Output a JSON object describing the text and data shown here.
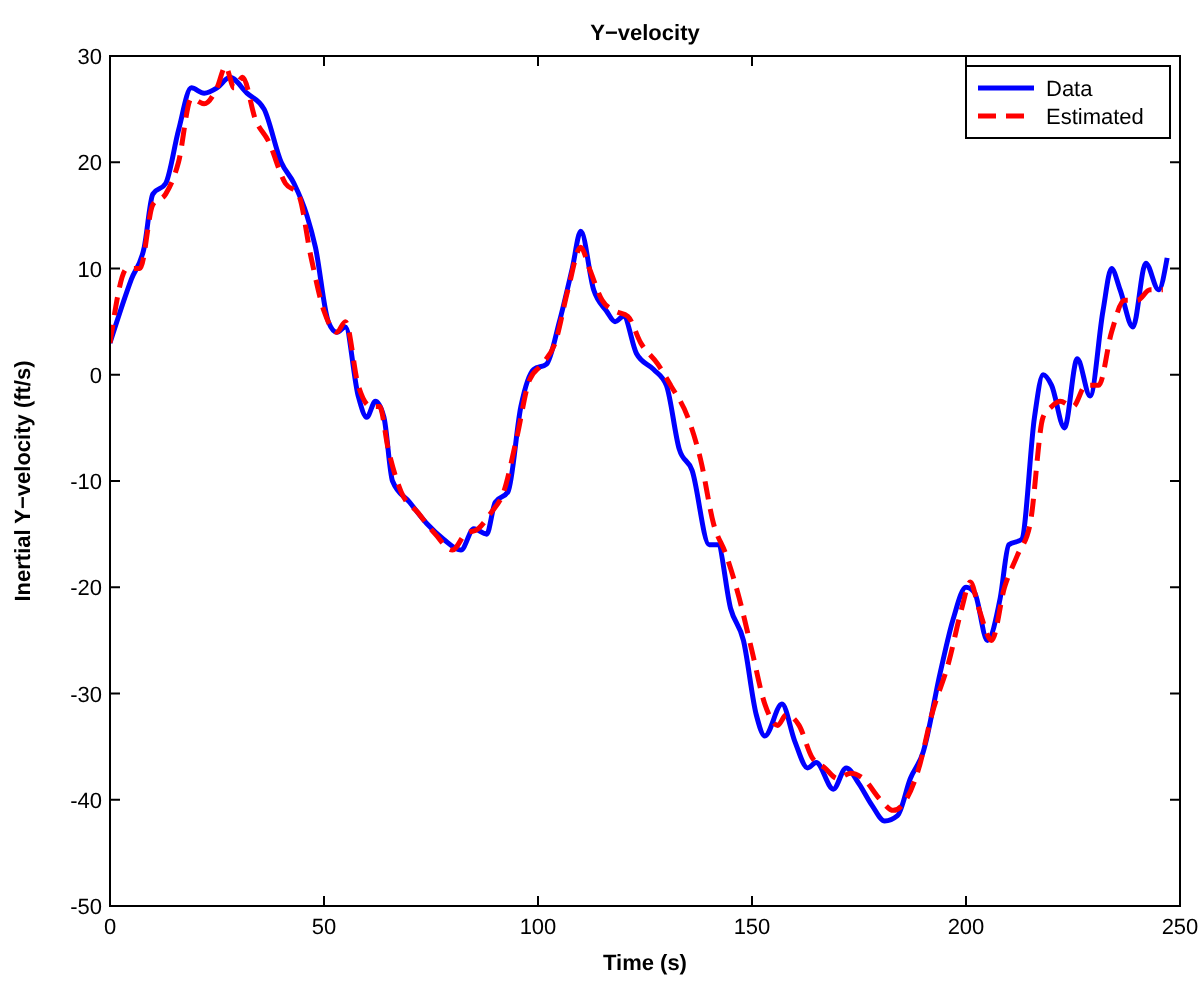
{
  "chart_data": {
    "type": "line",
    "title": "Y−velocity",
    "xlabel": "Time (s)",
    "ylabel": "Inertial Y−velocity (ft/s)",
    "xlim": [
      0,
      250
    ],
    "ylim": [
      -50,
      30
    ],
    "xticks": [
      0,
      50,
      100,
      150,
      200,
      250
    ],
    "yticks": [
      -50,
      -40,
      -30,
      -20,
      -10,
      0,
      10,
      20,
      30
    ],
    "legend": "top right",
    "grid": false,
    "series": [
      {
        "name": "Data",
        "color": "#0000ff",
        "line_style": "solid",
        "x": [
          0,
          5,
          8,
          10,
          13,
          16,
          19,
          22,
          25,
          28,
          32,
          36,
          40,
          43,
          46,
          48,
          51,
          53,
          55,
          58,
          60,
          62,
          64,
          66,
          70,
          74,
          78,
          82,
          85,
          88,
          90,
          93,
          96,
          99,
          102,
          105,
          108,
          110,
          113,
          116,
          118,
          120,
          123,
          127,
          130,
          133,
          136,
          140,
          142,
          145,
          148,
          151,
          153,
          157,
          160,
          163,
          165,
          169,
          172,
          175,
          178,
          181,
          184,
          187,
          190,
          194,
          197,
          200,
          202,
          205,
          208,
          210,
          213,
          216,
          218,
          220,
          223,
          226,
          229,
          232,
          234,
          236,
          239,
          242,
          245,
          247
        ],
        "values": [
          3,
          9,
          12,
          17,
          18,
          23,
          27,
          26.5,
          27,
          28,
          26.5,
          25,
          20,
          18,
          15,
          12,
          5,
          4,
          4.5,
          -2,
          -4,
          -2.5,
          -4,
          -10,
          -12,
          -14,
          -15.5,
          -16.5,
          -14.5,
          -15,
          -12,
          -11,
          -3,
          0.5,
          1,
          5,
          10,
          13.5,
          8,
          6,
          5,
          5.5,
          2,
          0.5,
          -1,
          -7,
          -9,
          -16,
          -16,
          -22,
          -25,
          -32,
          -34,
          -31,
          -34.5,
          -37,
          -36.5,
          -39,
          -37,
          -38.5,
          -40.5,
          -42,
          -41.5,
          -38,
          -35.5,
          -28,
          -23,
          -20,
          -20.5,
          -25,
          -21,
          -16,
          -15.5,
          -4,
          0,
          -1,
          -5,
          1.5,
          -2,
          6,
          10,
          8,
          4.5,
          10.5,
          8,
          11
        ]
      },
      {
        "name": "Estimated",
        "color": "#ff0000",
        "line_style": "dashed",
        "x": [
          0,
          4,
          7,
          10,
          13,
          16,
          19,
          22,
          25,
          27,
          29,
          31,
          34,
          37,
          41,
          44,
          47,
          50,
          53,
          55,
          58,
          61,
          63,
          65,
          68,
          72,
          76,
          80,
          83,
          86,
          89,
          92,
          95,
          98,
          101,
          104,
          107,
          110,
          112,
          115,
          118,
          121,
          124,
          128,
          131,
          135,
          138,
          141,
          144,
          147,
          150,
          153,
          156,
          158,
          161,
          164,
          167,
          170,
          173,
          176,
          180,
          183,
          186,
          189,
          192,
          196,
          199,
          201,
          203,
          206,
          209,
          212,
          215,
          218,
          220,
          222,
          225,
          228,
          231,
          234,
          237,
          240,
          243,
          246
        ],
        "values": [
          3,
          10,
          10,
          16,
          17,
          20,
          26,
          25.5,
          27,
          29,
          27,
          28,
          24,
          22,
          18,
          17,
          11,
          6,
          4,
          5,
          -1,
          -3,
          -3,
          -7,
          -11,
          -13,
          -15,
          -16.5,
          -15,
          -14.5,
          -13,
          -11,
          -6,
          -0.5,
          1,
          3,
          8,
          12,
          10,
          7,
          6,
          5.5,
          3,
          1,
          -1,
          -4,
          -8,
          -14,
          -17,
          -21,
          -26,
          -31,
          -33,
          -32,
          -33,
          -36,
          -37,
          -38,
          -37.5,
          -38,
          -40,
          -41,
          -40,
          -37,
          -32,
          -27,
          -22,
          -19.5,
          -22,
          -25,
          -20,
          -17,
          -14,
          -4,
          -3,
          -2.5,
          -3,
          -1,
          -1,
          4,
          7,
          7,
          8,
          8
        ]
      }
    ]
  }
}
